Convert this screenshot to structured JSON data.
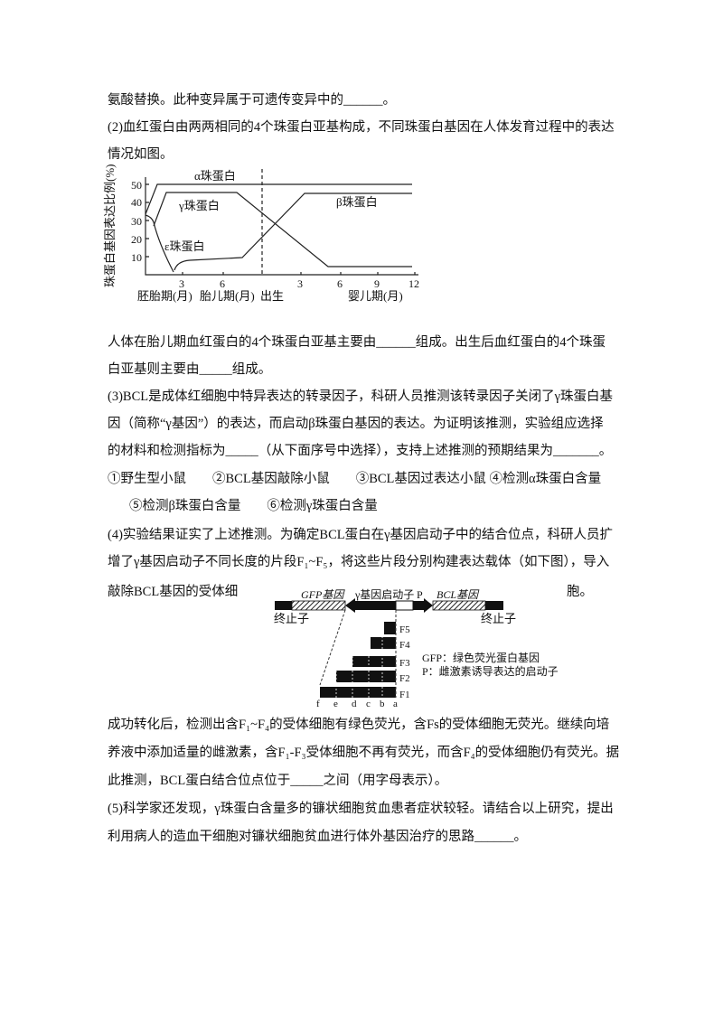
{
  "lines": [
    "氨酸替换。此种变异属于可遗传变异中的______。",
    "(2)血红蛋白由两两相同的4个珠蛋白亚基构成，不同珠蛋白基因在人体发育过程中的表达",
    "情况如图。",
    "人体在胎儿期血红蛋白的4个珠蛋白亚基主要由______组成。出生后血红蛋白的4个珠蛋",
    "白亚基则主要由_____组成。",
    "(3)BCL是成体红细胞中特异表达的转录因子，科研人员推测该转录因子关闭了γ珠蛋白基",
    "因（简称“γ基因”）的表达，而启动β珠蛋白基因的表达。为证明该推测，实验组应选择",
    "的材料和检测指标为_____（从下面序号中选择），支持上述推测的预期结果为_______。",
    "①野生型小鼠　　②BCL基因敲除小鼠　　③BCL基因过表达小鼠 ④检测α珠蛋白含量",
    "⑤检测β珠蛋白含量　　⑥检测γ珠蛋白含量",
    "(4)实验结果证实了上述推测。为确定BCL蛋白在γ基因启动子中的结合位点，科研人员扩",
    "增了γ基因启动子不同长度的片段F₁~F₅，将这些片段分别构建表达载体（如下图），导入",
    "敲除BCL基因的受体细",
    "胞。",
    "成功转化后，检测出含F₁~F₄的受体细胞有绿色荧光，含Fs的受体细胞无荧光。继续向培",
    "养液中添加适量的雌激素，含F₁-F₃受体细胞不再有荧光，而含F₄的受体细胞仍有荧光。据",
    "此推测，BCL蛋白结合位点位于_____之间（用字母表示）。",
    "(5)科学家还发现，γ珠蛋白含量多的镰状细胞贫血患者症状较轻。请结合以上研究，提出",
    "利用病人的造血干细胞对镰状细胞贫血进行体外基因治疗的思路______。"
  ],
  "figure1": {
    "ylabel": "珠蛋白基因表达比例(%)",
    "yticks": [
      "10",
      "20",
      "30",
      "40",
      "50"
    ],
    "xticks": [
      "3",
      "6",
      "3",
      "6",
      "9",
      "12"
    ],
    "periods": [
      "胚胎期(月)",
      "胎儿期(月)",
      "出生",
      "婴儿期(月)"
    ],
    "curves": [
      "α珠蛋白",
      "γ珠蛋白",
      "ε珠蛋白",
      "β珠蛋白"
    ]
  },
  "figure2": {
    "gfp_gene": "GFP基因",
    "promoter": "γ基因启动子",
    "p": "P",
    "bcl_gene": "BCL基因",
    "terminator_left": "终止子",
    "terminator_right": "终止子",
    "fragments": [
      "F5",
      "F4",
      "F3",
      "F2",
      "F1"
    ],
    "sites": [
      "f",
      "e",
      "d",
      "c",
      "b",
      "a"
    ],
    "legend": [
      "GFP：绿色荧光蛋白基因",
      "P：雌激素诱导表达的启动子"
    ]
  }
}
